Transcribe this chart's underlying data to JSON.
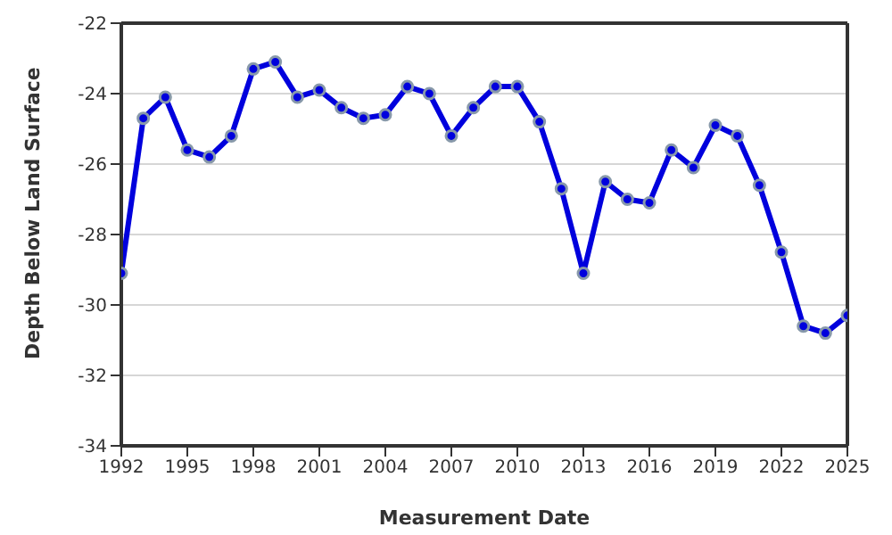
{
  "chart_data": {
    "type": "line",
    "xlabel": "Measurement Date",
    "ylabel": "Depth Below Land Surface",
    "x": [
      1992,
      1993,
      1994,
      1995,
      1996,
      1997,
      1998,
      1999,
      2000,
      2001,
      2002,
      2003,
      2004,
      2005,
      2006,
      2007,
      2008,
      2009,
      2010,
      2011,
      2012,
      2013,
      2014,
      2015,
      2016,
      2017,
      2018,
      2019,
      2020,
      2021,
      2022,
      2023,
      2024,
      2025
    ],
    "series": [
      {
        "color": "#0000dd",
        "values": [
          -29.1,
          -24.7,
          -24.1,
          -25.6,
          -25.8,
          -25.2,
          -23.3,
          -23.1,
          -24.1,
          -23.9,
          -24.4,
          -24.7,
          -24.6,
          -23.8,
          -24.0,
          -25.2,
          -24.4,
          -23.8,
          -23.8,
          -24.8,
          -26.7,
          -29.1,
          -26.5,
          -27.0,
          -27.1,
          -25.6,
          -26.1,
          -24.9,
          -25.2,
          -26.6,
          -28.5,
          -30.6,
          -30.8,
          -30.3
        ]
      }
    ],
    "xlim": [
      1992,
      2025
    ],
    "xticks": [
      1992,
      1995,
      1998,
      2001,
      2004,
      2007,
      2010,
      2013,
      2016,
      2019,
      2022,
      2025
    ],
    "ylim": [
      -34,
      -22
    ],
    "yticks": [
      -34,
      -32,
      -30,
      -28,
      -26,
      -24,
      -22
    ],
    "grid": "y",
    "legend": false,
    "marker": "circle",
    "line_style": "solid"
  }
}
